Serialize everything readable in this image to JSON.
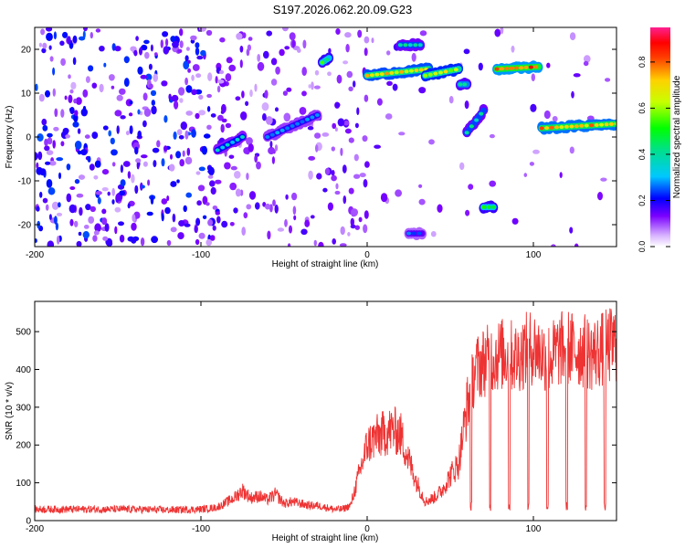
{
  "title": "S197.2026.062.20.09.G23",
  "chart_data": [
    {
      "type": "heatmap",
      "xlabel": "Height of straight line (km)",
      "ylabel": "Frequency (Hz)",
      "xlim": [
        -200,
        150
      ],
      "ylim": [
        -25,
        25
      ],
      "xticks": [
        -200,
        -100,
        0,
        100
      ],
      "yticks": [
        -20,
        -10,
        0,
        10,
        20
      ],
      "colorbar": {
        "label": "Normalized spectral amplitude",
        "range": [
          0,
          0.95
        ],
        "ticks": [
          "0.0",
          "0.2",
          "0.4",
          "0.6",
          "0.8"
        ],
        "tick_values": [
          0,
          0.2,
          0.4,
          0.6,
          0.8
        ]
      },
      "features": [
        {
          "x": [
            -90,
            -75
          ],
          "y": [
            -3,
            0
          ],
          "amplitude": 0.35
        },
        {
          "x": [
            -60,
            -30
          ],
          "y": [
            0,
            5
          ],
          "amplitude": 0.3
        },
        {
          "x": [
            -27,
            -23
          ],
          "y": [
            17,
            18
          ],
          "amplitude": 0.5
        },
        {
          "x": [
            20,
            32
          ],
          "y": [
            21,
            21
          ],
          "amplitude": 0.4
        },
        {
          "x": [
            0,
            37
          ],
          "y": [
            14,
            15.5
          ],
          "amplitude": 0.7
        },
        {
          "x": [
            35,
            55
          ],
          "y": [
            14,
            15.5
          ],
          "amplitude": 0.65
        },
        {
          "x": [
            56,
            60
          ],
          "y": [
            12,
            12
          ],
          "amplitude": 0.45
        },
        {
          "x": [
            60,
            70
          ],
          "y": [
            1,
            6
          ],
          "amplitude": 0.4
        },
        {
          "x": [
            70,
            76
          ],
          "y": [
            -16,
            -16
          ],
          "amplitude": 0.5
        },
        {
          "x": [
            78,
            103
          ],
          "y": [
            15.5,
            16
          ],
          "amplitude": 0.8
        },
        {
          "x": [
            105,
            150
          ],
          "y": [
            2,
            3
          ],
          "amplitude": 0.75
        },
        {
          "x": [
            25,
            33
          ],
          "y": [
            -22,
            -22
          ],
          "amplitude": 0.25
        }
      ]
    },
    {
      "type": "line",
      "xlabel": "Height of straight line (km)",
      "ylabel": "SNR (10 * v/v)",
      "xlim": [
        -200,
        150
      ],
      "ylim": [
        0,
        580
      ],
      "xticks": [
        -200,
        -100,
        0,
        100
      ],
      "yticks": [
        0,
        100,
        200,
        300,
        400,
        500
      ],
      "color": "#ee3333",
      "series": [
        {
          "name": "SNR",
          "x": [
            -200,
            -180,
            -160,
            -140,
            -120,
            -100,
            -90,
            -80,
            -75,
            -70,
            -65,
            -60,
            -55,
            -50,
            -45,
            -40,
            -35,
            -30,
            -25,
            -20,
            -15,
            -10,
            -5,
            0,
            5,
            10,
            15,
            20,
            25,
            30,
            35,
            40,
            45,
            50,
            55,
            60,
            65,
            70,
            75,
            80,
            85,
            90,
            95,
            100,
            105,
            110,
            115,
            120,
            125,
            130,
            135,
            140,
            145,
            150
          ],
          "y": [
            30,
            30,
            30,
            30,
            28,
            30,
            35,
            60,
            80,
            60,
            65,
            55,
            70,
            45,
            50,
            45,
            40,
            40,
            35,
            30,
            30,
            40,
            120,
            200,
            220,
            230,
            240,
            230,
            160,
            100,
            50,
            60,
            80,
            120,
            150,
            300,
            400,
            420,
            430,
            440,
            440,
            430,
            450,
            460,
            440,
            430,
            450,
            460,
            450,
            450,
            440,
            450,
            460,
            470
          ]
        }
      ]
    }
  ]
}
